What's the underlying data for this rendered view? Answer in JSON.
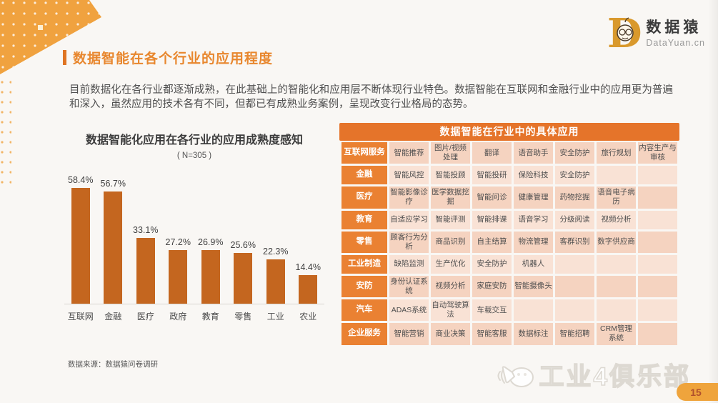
{
  "page": {
    "number": "15"
  },
  "logo": {
    "letter": "D",
    "name": "数据猿",
    "domain": "DataYuan.cn"
  },
  "header": {
    "title": "数据智能在各个行业的应用程度"
  },
  "intro": {
    "text": "目前数据化在各行业都逐渐成熟，在此基础上的智能化和应用层不断体现行业特色。数据智能在互联网和金融行业中的应用更为普遍和深入，虽然应用的技术各有不同，但都已有成熟业务案例，呈现改变行业格局的态势。"
  },
  "chart_data": [
    {
      "type": "bar",
      "title": "数据智能化应用在各行业的应用成熟度感知",
      "subtitle": "( N=305 )",
      "categories": [
        "互联网",
        "金融",
        "医疗",
        "政府",
        "教育",
        "零售",
        "工业",
        "农业"
      ],
      "values": [
        58.4,
        56.7,
        33.1,
        27.2,
        26.9,
        25.6,
        22.3,
        14.4
      ],
      "unit": "%",
      "ylim": [
        0,
        60
      ],
      "grid": false,
      "legend": "none",
      "source": "数据来源：数据猿问卷调研"
    },
    {
      "type": "table",
      "title": "数据智能在行业中的具体应用",
      "rows": [
        {
          "label": "互联网服务",
          "cells": [
            "智能推荐",
            "图片/视频处理",
            "翻译",
            "语音助手",
            "安全防护",
            "旅行规划",
            "内容生产与审核"
          ]
        },
        {
          "label": "金融",
          "cells": [
            "智能风控",
            "智能投顾",
            "智能投研",
            "保险科技",
            "安全防护",
            "",
            ""
          ]
        },
        {
          "label": "医疗",
          "cells": [
            "智能影像诊疗",
            "医学数据挖掘",
            "智能问诊",
            "健康管理",
            "药物挖掘",
            "语音电子病历",
            ""
          ]
        },
        {
          "label": "教育",
          "cells": [
            "自适应学习",
            "智能评测",
            "智能排课",
            "语音学习",
            "分级阅读",
            "视频分析",
            ""
          ]
        },
        {
          "label": "零售",
          "cells": [
            "顾客行为分析",
            "商品识别",
            "自主结算",
            "物流管理",
            "客群识别",
            "数字供应商",
            ""
          ]
        },
        {
          "label": "工业制造",
          "cells": [
            "缺陷监测",
            "生产优化",
            "安全防护",
            "机器人",
            "",
            "",
            ""
          ]
        },
        {
          "label": "安防",
          "cells": [
            "身份认证系统",
            "视频分析",
            "家庭安防",
            "智能摄像头",
            "",
            "",
            ""
          ]
        },
        {
          "label": "汽车",
          "cells": [
            "ADAS系统",
            "自动驾驶算法",
            "车载交互",
            "",
            "",
            "",
            ""
          ]
        },
        {
          "label": "企业服务",
          "cells": [
            "智能营销",
            "商业决策",
            "智能客服",
            "数据标注",
            "智能招聘",
            "CRM管理系统",
            ""
          ]
        }
      ]
    }
  ],
  "watermark": {
    "text": "工业4俱乐部"
  },
  "colors": {
    "accent": "#e8872e",
    "accent_dark": "#df7422",
    "bar": "#c4661f",
    "table_header": "#e5742a",
    "table_label": "#ea8132",
    "cell_odd": "#f5d3c0",
    "cell_even": "#f9e2d5",
    "deco": "#f0a23f",
    "badge": "#efa43c",
    "logo_gold": "#d9992c"
  }
}
